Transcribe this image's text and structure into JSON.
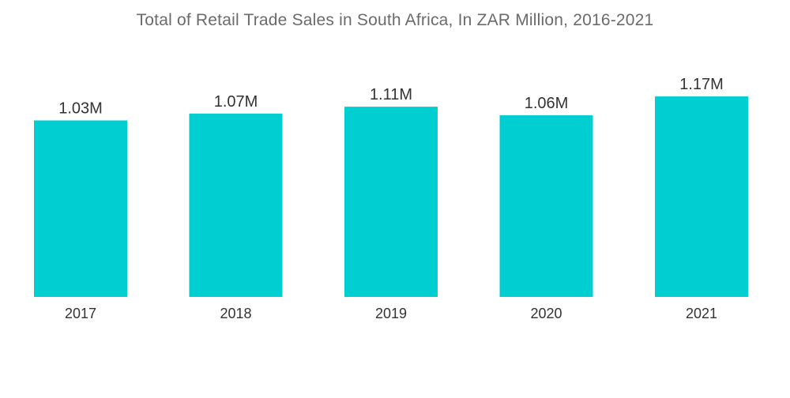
{
  "title": "Total of Retail Trade Sales in South Africa, In ZAR Million, 2016-2021",
  "colors": {
    "bar": "#00CED1"
  },
  "chart_data": {
    "type": "bar",
    "title": "Total of Retail Trade Sales in South Africa, In ZAR Million, 2016-2021",
    "xlabel": "",
    "ylabel": "",
    "categories": [
      "2017",
      "2018",
      "2019",
      "2020",
      "2021"
    ],
    "values": [
      1.03,
      1.07,
      1.11,
      1.06,
      1.17
    ],
    "value_labels": [
      "1.03M",
      "1.07M",
      "1.11M",
      "1.06M",
      "1.17M"
    ],
    "unit": "M",
    "ylim": [
      0,
      1.2
    ],
    "grid": false,
    "legend": "none"
  }
}
